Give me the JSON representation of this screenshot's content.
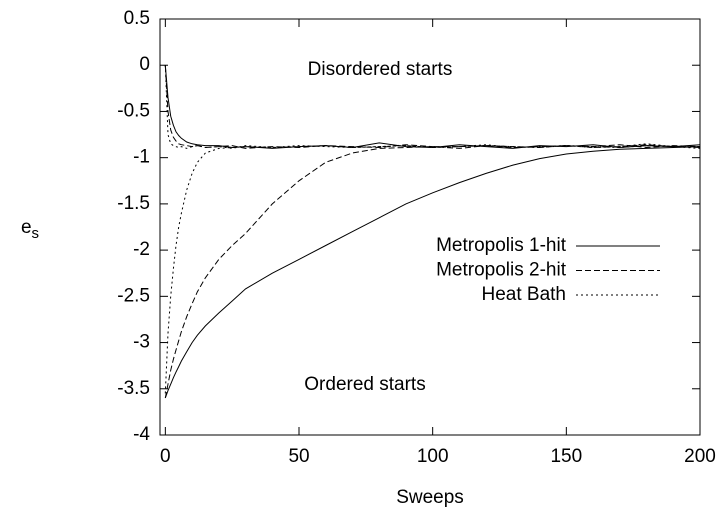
{
  "chart_data": {
    "type": "line",
    "xlabel": "Sweeps",
    "ylabel": {
      "text": "e",
      "subscript": "s"
    },
    "annotations": [
      "Disordered starts",
      "Ordered starts"
    ],
    "xlim": [
      -2,
      200
    ],
    "ylim": [
      -4,
      0.5
    ],
    "xticks": [
      0,
      50,
      100,
      150,
      200
    ],
    "yticks": [
      0.5,
      0,
      -0.5,
      -1,
      -1.5,
      -2,
      -2.5,
      -3,
      -3.5,
      -4
    ],
    "legend": "right",
    "x": [
      0,
      1,
      2,
      3,
      4,
      5,
      6,
      8,
      10,
      12,
      15,
      20,
      25,
      30,
      40,
      50,
      60,
      70,
      80,
      90,
      100,
      110,
      120,
      130,
      140,
      150,
      160,
      170,
      180,
      190,
      200
    ],
    "series": [
      {
        "name": "Metropolis 1-hit",
        "color": "#000000",
        "dash": "none",
        "curves": [
          [
            0,
            -0.35,
            -0.55,
            -0.65,
            -0.72,
            -0.76,
            -0.79,
            -0.83,
            -0.85,
            -0.86,
            -0.87,
            -0.87,
            -0.89,
            -0.88,
            -0.9,
            -0.88,
            -0.87,
            -0.89,
            -0.84,
            -0.88,
            -0.89,
            -0.86,
            -0.88,
            -0.9,
            -0.87,
            -0.88,
            -0.86,
            -0.89,
            -0.87,
            -0.88,
            -0.86
          ],
          [
            -3.6,
            -3.52,
            -3.45,
            -3.38,
            -3.32,
            -3.26,
            -3.2,
            -3.1,
            -3.0,
            -2.92,
            -2.82,
            -2.68,
            -2.55,
            -2.42,
            -2.25,
            -2.1,
            -1.95,
            -1.8,
            -1.65,
            -1.5,
            -1.38,
            -1.27,
            -1.17,
            -1.08,
            -1.01,
            -0.96,
            -0.93,
            -0.91,
            -0.9,
            -0.89,
            -0.88
          ]
        ]
      },
      {
        "name": "Metropolis 2-hit",
        "color": "#000000",
        "dash": "6 3",
        "curves": [
          [
            0,
            -0.5,
            -0.7,
            -0.78,
            -0.82,
            -0.85,
            -0.86,
            -0.87,
            -0.88,
            -0.87,
            -0.89,
            -0.88,
            -0.87,
            -0.9,
            -0.88,
            -0.89,
            -0.87,
            -0.88,
            -0.89,
            -0.86,
            -0.88,
            -0.9,
            -0.87,
            -0.88,
            -0.89,
            -0.87,
            -0.88,
            -0.86,
            -0.89,
            -0.87,
            -0.88
          ],
          [
            -3.6,
            -3.45,
            -3.3,
            -3.18,
            -3.08,
            -2.98,
            -2.88,
            -2.72,
            -2.58,
            -2.45,
            -2.3,
            -2.1,
            -1.95,
            -1.82,
            -1.5,
            -1.25,
            -1.05,
            -0.95,
            -0.9,
            -0.89,
            -0.88,
            -0.88,
            -0.87,
            -0.89,
            -0.88,
            -0.87,
            -0.89,
            -0.88,
            -0.86,
            -0.88,
            -0.89
          ]
        ]
      },
      {
        "name": "Heat Bath",
        "color": "#000000",
        "dash": "2 3",
        "curves": [
          [
            0,
            -0.75,
            -0.85,
            -0.87,
            -0.88,
            -0.89,
            -0.88,
            -0.9,
            -0.88,
            -0.87,
            -0.89,
            -0.88,
            -0.9,
            -0.87,
            -0.89,
            -0.88,
            -0.87,
            -0.89,
            -0.88,
            -0.87,
            -0.89,
            -0.88,
            -0.86,
            -0.89,
            -0.88,
            -0.87,
            -0.89,
            -0.88,
            -0.85,
            -0.88,
            -0.9
          ],
          [
            -3.55,
            -2.9,
            -2.5,
            -2.2,
            -1.95,
            -1.75,
            -1.6,
            -1.35,
            -1.17,
            -1.05,
            -0.95,
            -0.9,
            -0.89,
            -0.88,
            -0.89,
            -0.87,
            -0.88,
            -0.89,
            -0.88,
            -0.87,
            -0.89,
            -0.88,
            -0.87,
            -0.88,
            -0.89,
            -0.87,
            -0.88,
            -0.89,
            -0.87,
            -0.88,
            -0.88
          ]
        ]
      }
    ]
  }
}
